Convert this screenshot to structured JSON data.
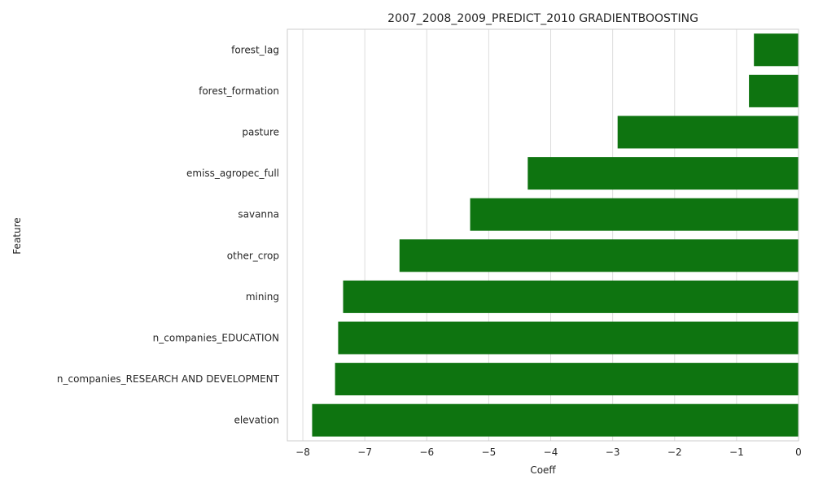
{
  "chart_data": {
    "type": "bar",
    "orientation": "horizontal",
    "title": "2007_2008_2009_PREDICT_2010 GRADIENTBOOSTING",
    "xlabel": "Coeff",
    "ylabel": "Feature",
    "xlim": [
      -8.25,
      0
    ],
    "xticks": [
      -8,
      -7,
      -6,
      -5,
      -4,
      -3,
      -2,
      -1,
      0
    ],
    "xtick_labels": [
      "−8",
      "−7",
      "−6",
      "−5",
      "−4",
      "−3",
      "−2",
      "−1",
      "0"
    ],
    "grid": true,
    "bar_color": "#0e7410",
    "categories": [
      "forest_lag",
      "forest_formation",
      "pasture",
      "emiss_agropec_full",
      "savanna",
      "other_crop",
      "mining",
      "n_companies_EDUCATION",
      "n_companies_RESEARCH AND DEVELOPMENT",
      "elevation"
    ],
    "values": [
      -0.72,
      -0.8,
      -2.92,
      -4.37,
      -5.3,
      -6.44,
      -7.35,
      -7.43,
      -7.48,
      -7.85
    ]
  }
}
